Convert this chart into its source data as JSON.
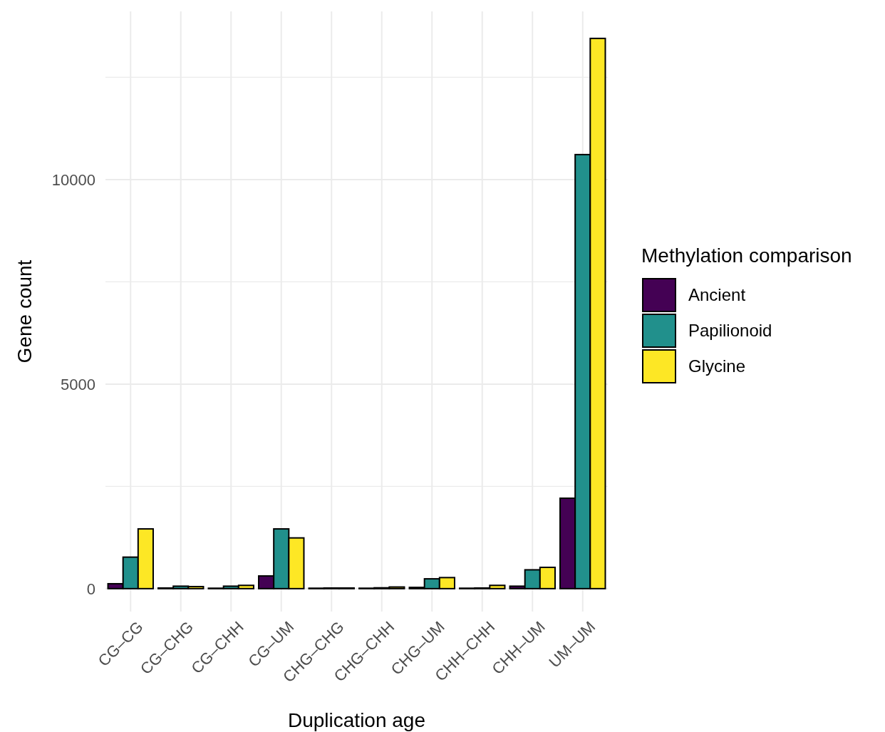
{
  "chart_data": {
    "type": "bar",
    "xlabel": "Duplication age",
    "ylabel": "Gene count",
    "legend_title": "Methylation comparison",
    "legend": "right",
    "grid": true,
    "categories": [
      "CG–CG",
      "CG–CHG",
      "CG–CHH",
      "CG–UM",
      "CHG–CHG",
      "CHG–CHH",
      "CHG–UM",
      "CHH–CHH",
      "CHH–UM",
      "UM–UM"
    ],
    "series": [
      {
        "name": "Ancient",
        "color": "#440154",
        "values": [
          120,
          15,
          10,
          310,
          10,
          10,
          30,
          10,
          60,
          2210
        ]
      },
      {
        "name": "Papilionoid",
        "color": "#21908c",
        "values": [
          770,
          60,
          60,
          1460,
          15,
          20,
          240,
          15,
          460,
          10610
        ]
      },
      {
        "name": "Glycine",
        "color": "#fde725",
        "values": [
          1460,
          50,
          80,
          1240,
          15,
          40,
          270,
          80,
          520,
          13450
        ]
      }
    ],
    "ylim": [
      -560,
      14110
    ],
    "yticks": [
      0,
      {
        "value": 2500,
        "label": null
      },
      5000,
      {
        "value": 7500,
        "label": null
      },
      10000,
      {
        "value": 12500,
        "label": null
      }
    ]
  }
}
